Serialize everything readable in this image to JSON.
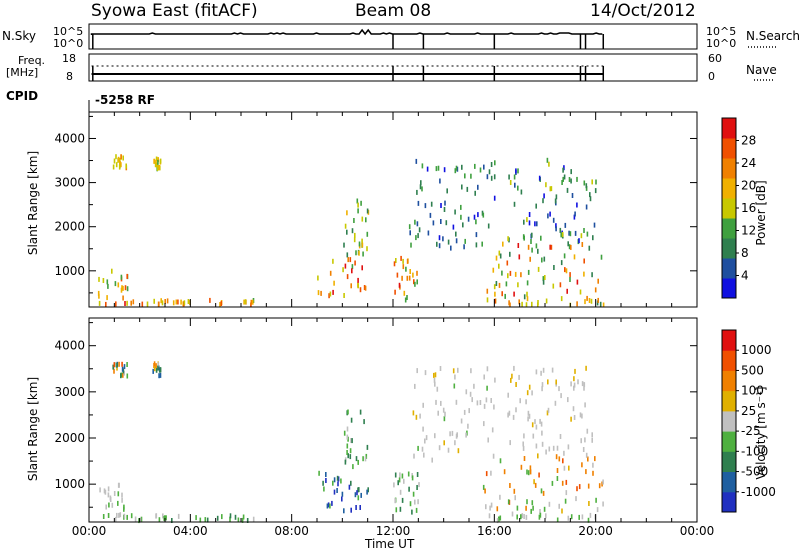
{
  "header": {
    "station": "Syowa East (fitACF)",
    "beam": "Beam 08",
    "date": "14/Oct/2012"
  },
  "top_panels": {
    "nsky_label": "N.Sky",
    "nsky_ticks": [
      "10^5",
      "10^0"
    ],
    "nsearch_label": "N.Search",
    "nsearch_ticks": [
      "10^5",
      "10^0"
    ],
    "freq_label": "Freq.",
    "freq_unit": "[MHz]",
    "freq_ticks": [
      "18",
      "8"
    ],
    "nave_label": "Nave",
    "nave_ticks": [
      "60",
      "0"
    ],
    "cpid_label": "CPID",
    "cpid_value": "-5258 RF"
  },
  "colors": {
    "power_scale": [
      "#1010e0",
      "#1f4f9f",
      "#2f7f4f",
      "#3fa03f",
      "#c8c800",
      "#f0b000",
      "#f08000",
      "#f05000",
      "#e01010"
    ],
    "velocity_scale": [
      "#2030c0",
      "#1f5fa0",
      "#2f7f4f",
      "#4fb040",
      "#c0c0c0",
      "#e0b000",
      "#f08000",
      "#f05000",
      "#e01010"
    ]
  },
  "chart_data": [
    {
      "type": "heatmap",
      "name": "power",
      "xlabel": "Time UT",
      "ylabel": "Slant Range [km]",
      "xlim": [
        0,
        24
      ],
      "ylim": [
        180,
        4600
      ],
      "x_tick_labels": [
        "00:00",
        "04:00",
        "08:00",
        "12:00",
        "16:00",
        "20:00",
        "00:00"
      ],
      "y_tick_labels": [
        "1000",
        "2000",
        "3000",
        "4000"
      ],
      "colorbar_label": "Power [dB]",
      "colorbar_ticks": [
        "4",
        "8",
        "12",
        "16",
        "20",
        "24",
        "28"
      ],
      "clim": [
        0,
        32
      ],
      "regions": [
        {
          "t0": 0.3,
          "t1": 3.0,
          "r0": 200,
          "r1": 320,
          "v0": 12,
          "v1": 30
        },
        {
          "t0": 0.3,
          "t1": 1.5,
          "r0": 300,
          "r1": 1000,
          "v0": 10,
          "v1": 26
        },
        {
          "t0": 0.9,
          "t1": 1.5,
          "r0": 3300,
          "r1": 3600,
          "v0": 14,
          "v1": 22
        },
        {
          "t0": 2.5,
          "t1": 2.8,
          "r0": 3300,
          "r1": 3600,
          "v0": 14,
          "v1": 22
        },
        {
          "t0": 3.0,
          "t1": 6.5,
          "r0": 200,
          "r1": 320,
          "v0": 14,
          "v1": 28
        },
        {
          "t0": 9.0,
          "t1": 11.0,
          "r0": 400,
          "r1": 1300,
          "v0": 14,
          "v1": 32
        },
        {
          "t0": 10.0,
          "t1": 11.0,
          "r0": 1300,
          "r1": 2600,
          "v0": 8,
          "v1": 20
        },
        {
          "t0": 12.0,
          "t1": 13.0,
          "r0": 300,
          "r1": 1300,
          "v0": 12,
          "v1": 30
        },
        {
          "t0": 12.6,
          "t1": 16.0,
          "r0": 1500,
          "r1": 3500,
          "v0": 2,
          "v1": 14
        },
        {
          "t0": 15.5,
          "t1": 20.3,
          "r0": 300,
          "r1": 1600,
          "v0": 8,
          "v1": 30
        },
        {
          "t0": 16.5,
          "t1": 20.0,
          "r0": 1600,
          "r1": 3500,
          "v0": 2,
          "v1": 16
        },
        {
          "t0": 16.0,
          "t1": 20.3,
          "r0": 200,
          "r1": 320,
          "v0": 8,
          "v1": 24
        }
      ]
    },
    {
      "type": "heatmap",
      "name": "velocity",
      "xlabel": "Time UT",
      "ylabel": "Slant Range [km]",
      "xlim": [
        0,
        24
      ],
      "ylim": [
        180,
        4600
      ],
      "x_tick_labels": [
        "00:00",
        "04:00",
        "08:00",
        "12:00",
        "16:00",
        "20:00",
        "00:00"
      ],
      "y_tick_labels": [
        "1000",
        "2000",
        "3000",
        "4000"
      ],
      "colorbar_label": "Velocity [m s⁻¹]",
      "colorbar_ticks": [
        "1000",
        "500",
        "100",
        "25",
        "-25",
        "-100",
        "-500",
        "-1000"
      ],
      "clim": [
        -1200,
        1200
      ],
      "regions": [
        {
          "t0": 0.3,
          "t1": 3.0,
          "r0": 200,
          "r1": 320,
          "v0": -300,
          "v1": 50
        },
        {
          "t0": 0.3,
          "t1": 1.5,
          "r0": 300,
          "r1": 1000,
          "v0": -300,
          "v1": 50
        },
        {
          "t0": 0.9,
          "t1": 1.5,
          "r0": 3300,
          "r1": 3600,
          "v0": -900,
          "v1": 900
        },
        {
          "t0": 2.5,
          "t1": 2.8,
          "r0": 3300,
          "r1": 3600,
          "v0": -900,
          "v1": 900
        },
        {
          "t0": 3.0,
          "t1": 6.5,
          "r0": 200,
          "r1": 320,
          "v0": -600,
          "v1": -50
        },
        {
          "t0": 9.0,
          "t1": 11.0,
          "r0": 400,
          "r1": 1300,
          "v0": -1100,
          "v1": -200
        },
        {
          "t0": 10.0,
          "t1": 11.0,
          "r0": 1300,
          "r1": 2600,
          "v0": -600,
          "v1": -50
        },
        {
          "t0": 12.0,
          "t1": 13.0,
          "r0": 300,
          "r1": 1300,
          "v0": -600,
          "v1": 100
        },
        {
          "t0": 12.6,
          "t1": 16.0,
          "r0": 1500,
          "r1": 3500,
          "v0": -150,
          "v1": 150
        },
        {
          "t0": 15.5,
          "t1": 20.3,
          "r0": 300,
          "r1": 1600,
          "v0": -300,
          "v1": 800
        },
        {
          "t0": 16.5,
          "t1": 20.0,
          "r0": 1600,
          "r1": 3500,
          "v0": -100,
          "v1": 200
        },
        {
          "t0": 16.0,
          "t1": 20.3,
          "r0": 200,
          "r1": 320,
          "v0": -300,
          "v1": 100
        }
      ]
    }
  ]
}
